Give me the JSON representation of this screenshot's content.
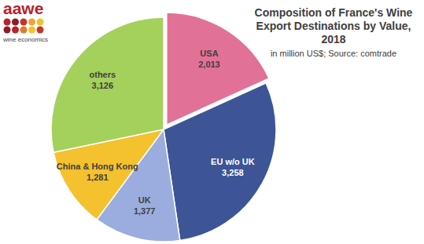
{
  "logo": {
    "name": "aawe",
    "tagline": "wine economics"
  },
  "chart_data": {
    "type": "pie",
    "title": "Composition of France's Wine Export Destinations by Value, 2018",
    "subtitle": "in million US$; Source: comtrade",
    "categories": [
      "USA",
      "EU w/o UK",
      "UK",
      "China & Hong Kong",
      "others"
    ],
    "values": [
      2013,
      3258,
      1377,
      1281,
      3126
    ],
    "value_labels": [
      "2,013",
      "3,258",
      "1,377",
      "1,281",
      "3,126"
    ],
    "colors": [
      "#e27198",
      "#3d5597",
      "#9badde",
      "#f4c12f",
      "#a4d05c"
    ],
    "data_labels": true
  }
}
